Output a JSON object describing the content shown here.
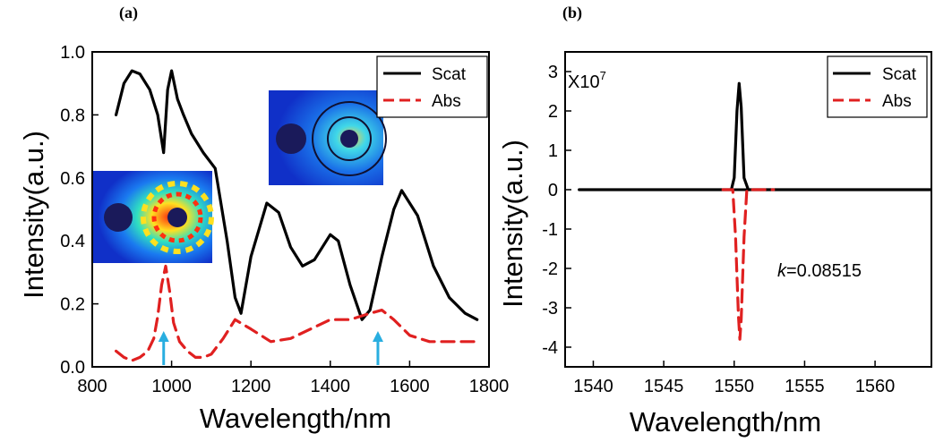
{
  "chart_data": [
    {
      "panel": "(a)",
      "type": "line",
      "xlabel": "Wavelength/nm",
      "ylabel": "Intensity(a.u.)",
      "xlim": [
        800,
        1800
      ],
      "ylim": [
        0,
        1.0
      ],
      "xticks": [
        "800",
        "1000",
        "1200",
        "1400",
        "1600",
        "1800"
      ],
      "yticks": [
        "0.0",
        "0.2",
        "0.4",
        "0.6",
        "0.8",
        "1.0"
      ],
      "legend": "top-right",
      "series": [
        {
          "name": "Scat",
          "color": "#000000",
          "style": "solid",
          "x": [
            860,
            880,
            900,
            920,
            945,
            965,
            980,
            990,
            1000,
            1015,
            1030,
            1050,
            1080,
            1110,
            1140,
            1160,
            1175,
            1200,
            1240,
            1270,
            1300,
            1330,
            1360,
            1400,
            1420,
            1450,
            1480,
            1500,
            1530,
            1560,
            1580,
            1620,
            1660,
            1700,
            1740,
            1770
          ],
          "y": [
            0.8,
            0.9,
            0.94,
            0.93,
            0.88,
            0.8,
            0.68,
            0.88,
            0.94,
            0.85,
            0.8,
            0.74,
            0.68,
            0.63,
            0.4,
            0.22,
            0.17,
            0.35,
            0.52,
            0.49,
            0.38,
            0.32,
            0.34,
            0.42,
            0.4,
            0.26,
            0.15,
            0.18,
            0.35,
            0.5,
            0.56,
            0.48,
            0.32,
            0.22,
            0.17,
            0.15
          ]
        },
        {
          "name": "Abs",
          "color": "#e02020",
          "style": "dashed",
          "x": [
            860,
            880,
            900,
            920,
            940,
            955,
            965,
            975,
            985,
            995,
            1005,
            1020,
            1040,
            1060,
            1080,
            1100,
            1130,
            1160,
            1200,
            1250,
            1300,
            1350,
            1400,
            1450,
            1500,
            1530,
            1560,
            1600,
            1650,
            1700,
            1770
          ],
          "y": [
            0.05,
            0.03,
            0.02,
            0.03,
            0.05,
            0.09,
            0.16,
            0.26,
            0.32,
            0.24,
            0.14,
            0.08,
            0.05,
            0.03,
            0.03,
            0.04,
            0.09,
            0.15,
            0.12,
            0.08,
            0.09,
            0.12,
            0.15,
            0.15,
            0.17,
            0.18,
            0.15,
            0.1,
            0.08,
            0.08,
            0.08
          ]
        }
      ],
      "arrows_x": [
        980,
        1520
      ],
      "arrow_color": "#29aee0"
    },
    {
      "panel": "(b)",
      "type": "line",
      "xlabel": "Wavelength/nm",
      "ylabel": "Intensity(a.u.)",
      "xlim": [
        1538,
        1564
      ],
      "ylim": [
        -4.5,
        3.5
      ],
      "xticks": [
        "1540",
        "1545",
        "1550",
        "1555",
        "1560"
      ],
      "yticks": [
        "-4",
        "-3",
        "-2",
        "-1",
        "0",
        "1",
        "2",
        "3"
      ],
      "scale_label": "X10",
      "scale_exponent": "7",
      "legend": "top-right",
      "annotation": {
        "italic": "k",
        "text": "=0.08515"
      },
      "series": [
        {
          "name": "Scat",
          "color": "#000000",
          "style": "solid",
          "x": [
            1539,
            1549.8,
            1550.0,
            1550.2,
            1550.35,
            1550.5,
            1550.7,
            1551.0,
            1564
          ],
          "y": [
            0,
            0,
            0.3,
            2.0,
            2.7,
            2.1,
            0.3,
            0,
            0
          ]
        },
        {
          "name": "Abs",
          "color": "#e02020",
          "style": "dashed",
          "x": [
            1549.2,
            1549.9,
            1550.1,
            1550.3,
            1550.4,
            1550.5,
            1550.7,
            1550.9,
            1552.8
          ],
          "y": [
            0,
            0,
            -1.2,
            -3.2,
            -3.8,
            -3.3,
            -1.2,
            0,
            0
          ]
        }
      ]
    }
  ]
}
